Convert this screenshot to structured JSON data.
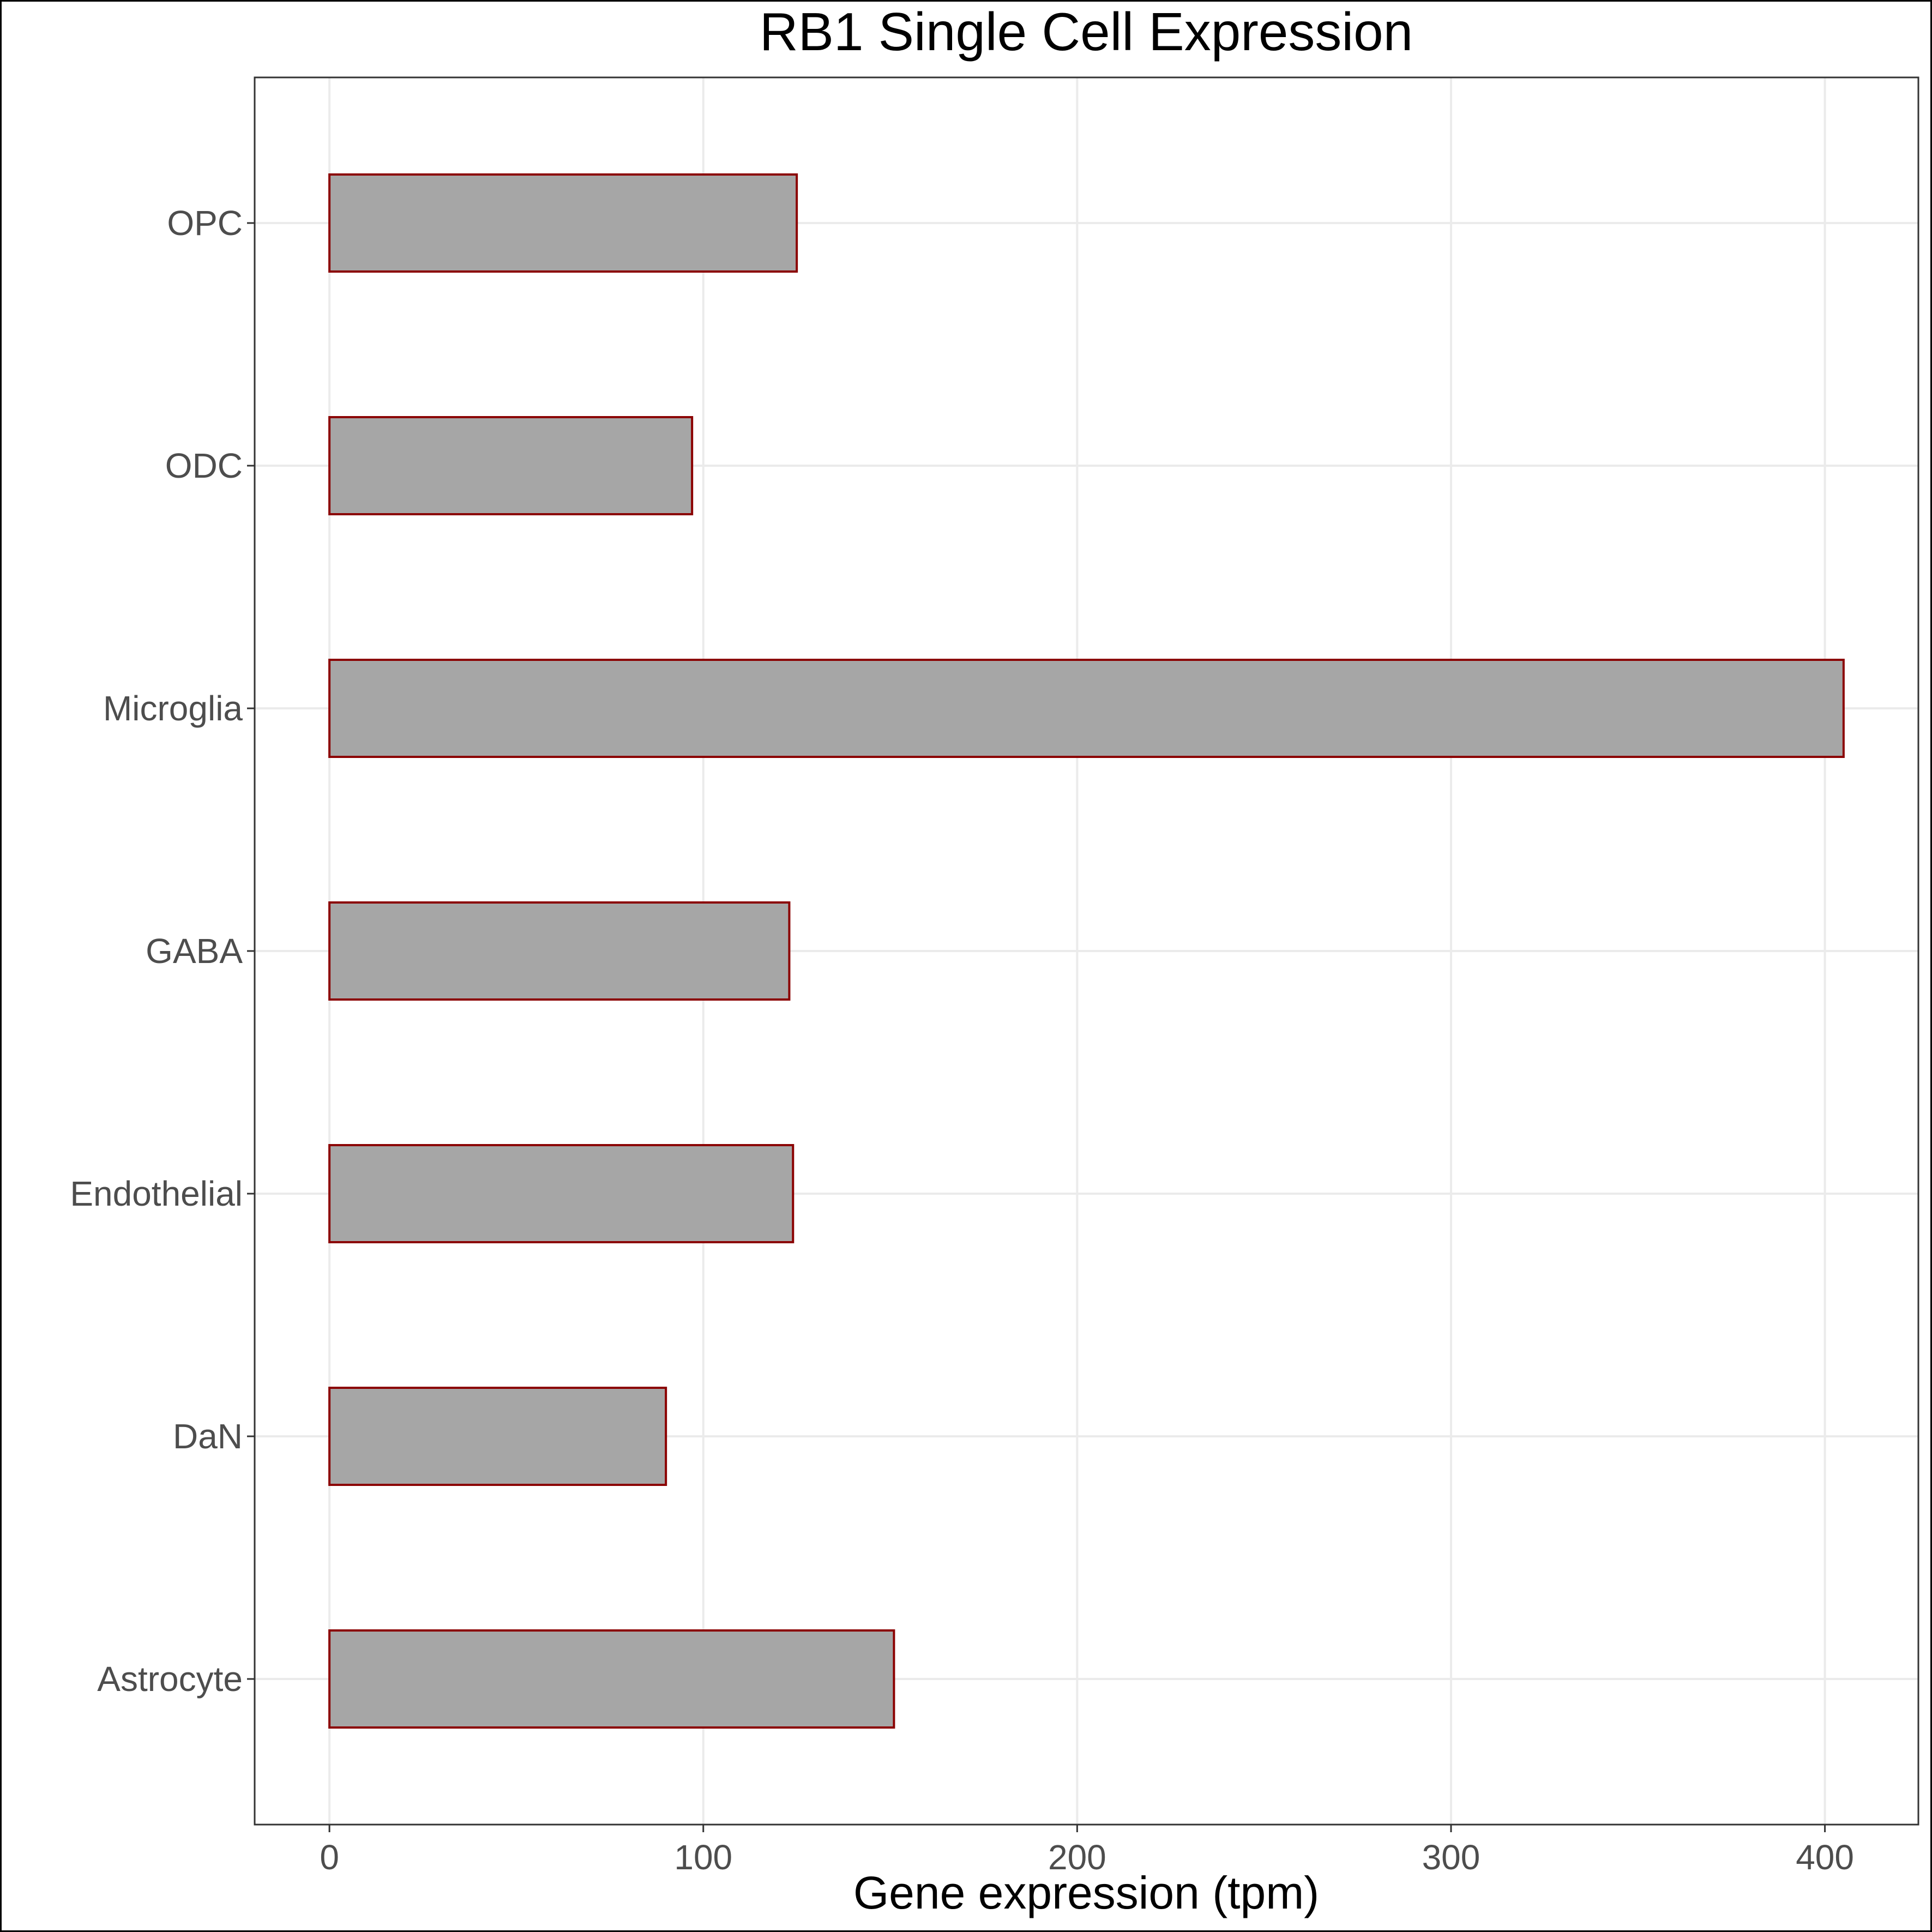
{
  "chart_data": {
    "type": "bar",
    "orientation": "horizontal",
    "title": "RB1 Single Cell Expression",
    "xlabel": "Gene expression (tpm)",
    "ylabel": "",
    "categories": [
      "Astrocyte",
      "DaN",
      "Endothelial",
      "GABA",
      "Microglia",
      "ODC",
      "OPC"
    ],
    "values": [
      151,
      90,
      124,
      123,
      405,
      97,
      125
    ],
    "xlim": [
      -20,
      425
    ],
    "xticks": [
      0,
      100,
      200,
      300,
      400
    ],
    "xtick_labels": [
      "0",
      "100",
      "200",
      "300",
      "400"
    ],
    "grid": true,
    "legend": "none",
    "colors": {
      "bar_fill": "#a6a6a6",
      "bar_outline": "#8b0000",
      "grid": "#ebebeb",
      "panel_border": "#333333",
      "tick_text": "#4d4d4d"
    }
  }
}
